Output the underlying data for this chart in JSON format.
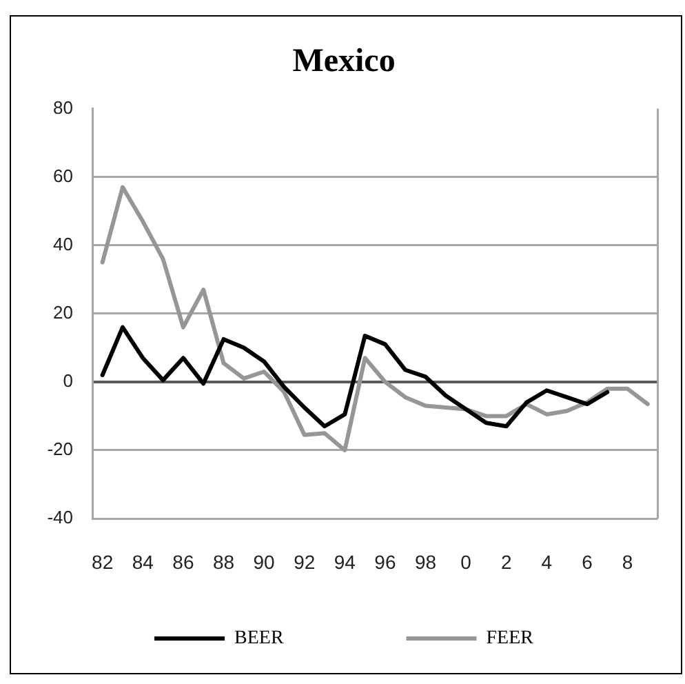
{
  "chart_data": {
    "type": "line",
    "title": "Mexico",
    "categories": [
      "82",
      null,
      "84",
      null,
      "86",
      null,
      "88",
      null,
      "90",
      null,
      "92",
      null,
      "94",
      null,
      "96",
      null,
      "98",
      null,
      "0",
      null,
      "2",
      null,
      "4",
      null,
      "6",
      null,
      "8",
      null
    ],
    "series": [
      {
        "name": "BEER",
        "color": "#000000",
        "values": [
          2,
          16,
          7,
          0.5,
          7,
          -0.5,
          12.5,
          10,
          6,
          -1.5,
          -7.5,
          -13,
          -9.5,
          13.5,
          11,
          3.5,
          1.5,
          -4,
          -8,
          -12,
          -13,
          -6,
          -2.5,
          -4.5,
          -6.5,
          -3,
          null,
          null
        ]
      },
      {
        "name": "FEER",
        "color": "#969696",
        "values": [
          35,
          57,
          47,
          36,
          16,
          27,
          5.5,
          1,
          3,
          -3,
          -15.5,
          -15,
          -20,
          7,
          0,
          -4.5,
          -7,
          -7.5,
          -8,
          -10,
          -10,
          -6.5,
          -9.5,
          -8.5,
          -6,
          -2,
          -2,
          -6.5
        ]
      }
    ],
    "ylim": [
      -40,
      80
    ],
    "yticks": [
      -40,
      -20,
      0,
      20,
      40,
      60,
      80
    ],
    "grid": "y",
    "legend": "bottom",
    "marker": "none",
    "line_style": "solid"
  }
}
